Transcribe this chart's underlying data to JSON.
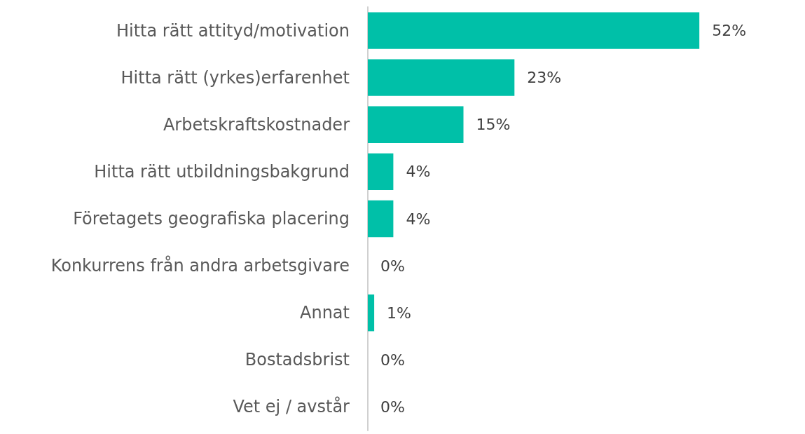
{
  "chart_data": {
    "type": "bar",
    "orientation": "horizontal",
    "categories": [
      "Hitta rätt attityd/motivation",
      "Hitta rätt (yrkes)erfarenhet",
      "Arbetskraftskostnader",
      "Hitta rätt utbildningsbakgrund",
      "Företagets geografiska placering",
      "Konkurrens från andra arbetsgivare",
      "Annat",
      "Bostadsbrist",
      "Vet ej / avstår"
    ],
    "values": [
      52,
      23,
      15,
      4,
      4,
      0,
      1,
      0,
      0
    ],
    "value_labels": [
      "52%",
      "23%",
      "15%",
      "4%",
      "4%",
      "0%",
      "1%",
      "0%",
      "0%"
    ],
    "color": "#00c0a8"
  }
}
